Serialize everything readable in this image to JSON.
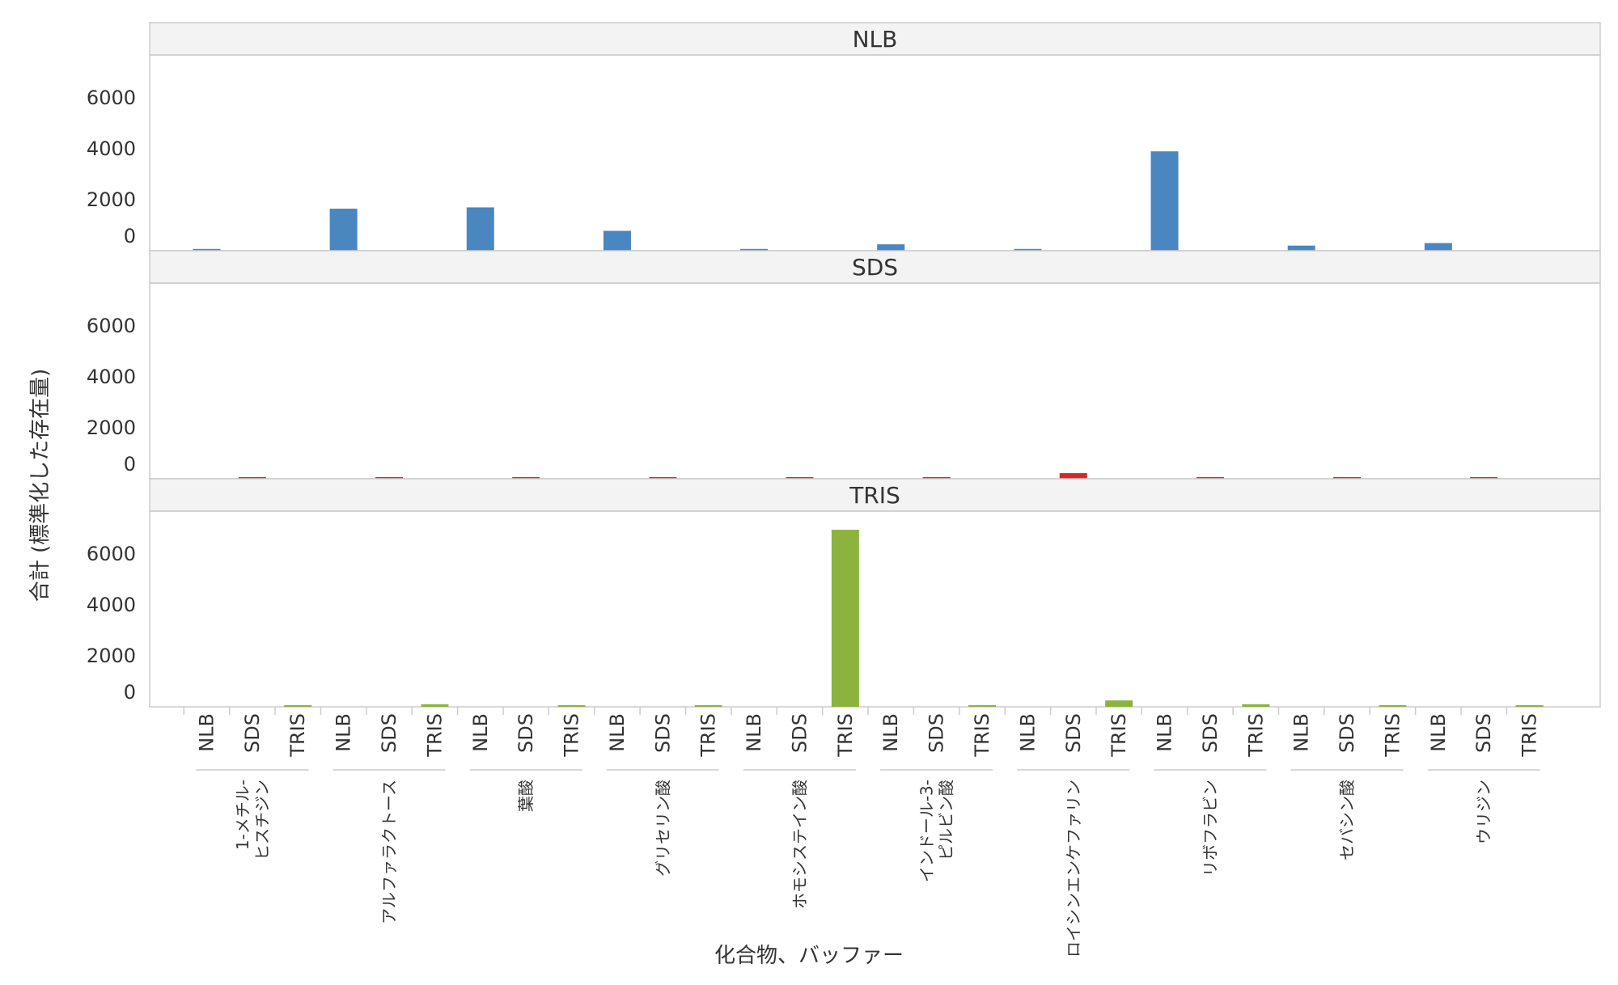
{
  "chart_data": {
    "type": "bar",
    "title": "",
    "xlabel": "化合物、バッファー",
    "ylabel": "合計 (標準化した存在量)",
    "ylim": [
      0,
      7000
    ],
    "yticks": [
      0,
      2000,
      4000,
      6000
    ],
    "yticks_labels": [
      "0",
      "2000",
      "4000",
      "6000"
    ],
    "grid": false,
    "legend": "none",
    "compounds": [
      [
        "1-メチル-",
        "ヒスチジン"
      ],
      [
        "アルファラクトース"
      ],
      [
        "葉酸"
      ],
      [
        "グリセリン酸"
      ],
      [
        "ホモシステイン酸"
      ],
      [
        "インドール-3-",
        "ピルビン酸"
      ],
      [
        "ロイシンエンケファリン"
      ],
      [
        "リボフラビン"
      ],
      [
        "セバシン酸"
      ],
      [
        "ウリジン"
      ]
    ],
    "buffers": [
      "NLB",
      "SDS",
      "TRIS"
    ],
    "series": [
      {
        "name": "NLB",
        "color": "#4a86c0",
        "values": [
          70,
          1650,
          1700,
          780,
          70,
          250,
          70,
          3900,
          200,
          300
        ]
      },
      {
        "name": "SDS",
        "color": "#d62728",
        "values": [
          30,
          30,
          30,
          30,
          30,
          30,
          220,
          30,
          30,
          30
        ]
      },
      {
        "name": "TRIS",
        "color": "#8bb33e",
        "values": [
          50,
          100,
          50,
          50,
          6950,
          50,
          250,
          100,
          50,
          50
        ]
      }
    ]
  }
}
